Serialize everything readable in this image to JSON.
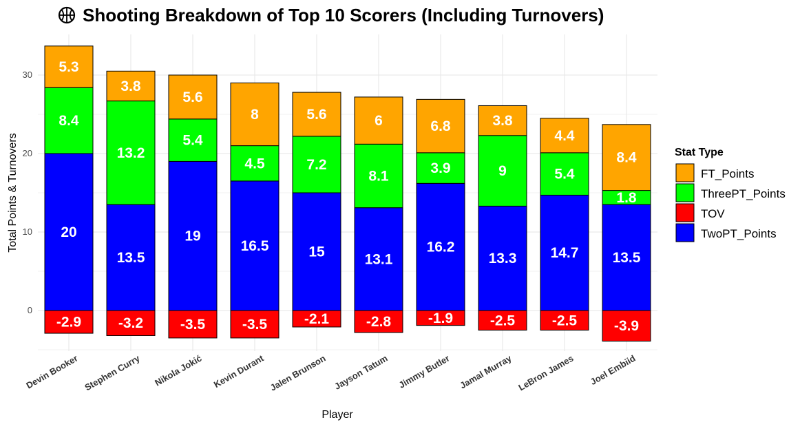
{
  "chart_data": {
    "type": "bar",
    "stacked": true,
    "title": "Shooting Breakdown of Top 10 Scorers (Including Turnovers)",
    "title_icon": "basketball-icon",
    "xlabel": "Player",
    "ylabel": "Total Points & Turnovers",
    "ylim": [
      -5,
      34
    ],
    "yticks": [
      0,
      10,
      20,
      30
    ],
    "grid": true,
    "legend_title": "Stat Type",
    "legend_position": "right",
    "categories": [
      "Devin Booker",
      "Stephen Curry",
      "Nikola Jokić",
      "Kevin Durant",
      "Jalen Brunson",
      "Jayson Tatum",
      "Jimmy Butler",
      "Jamal Murray",
      "LeBron James",
      "Joel Embiid"
    ],
    "series": [
      {
        "name": "FT_Points",
        "color": "#FFA500",
        "values": [
          5.3,
          3.8,
          5.6,
          8,
          5.6,
          6,
          6.8,
          3.8,
          4.4,
          8.4
        ]
      },
      {
        "name": "ThreePT_Points",
        "color": "#00FF00",
        "values": [
          8.4,
          13.2,
          5.4,
          4.5,
          7.2,
          8.1,
          3.9,
          9,
          5.4,
          1.8
        ]
      },
      {
        "name": "TOV",
        "color": "#FF0000",
        "values": [
          -2.9,
          -3.2,
          -3.5,
          -3.5,
          -2.1,
          -2.8,
          -1.9,
          -2.5,
          -2.5,
          -3.9
        ]
      },
      {
        "name": "TwoPT_Points",
        "color": "#0000FF",
        "values": [
          20,
          13.5,
          19,
          16.5,
          15,
          13.1,
          16.2,
          13.3,
          14.7,
          13.5
        ]
      }
    ],
    "stack_order": [
      "TwoPT_Points",
      "ThreePT_Points",
      "FT_Points"
    ]
  }
}
